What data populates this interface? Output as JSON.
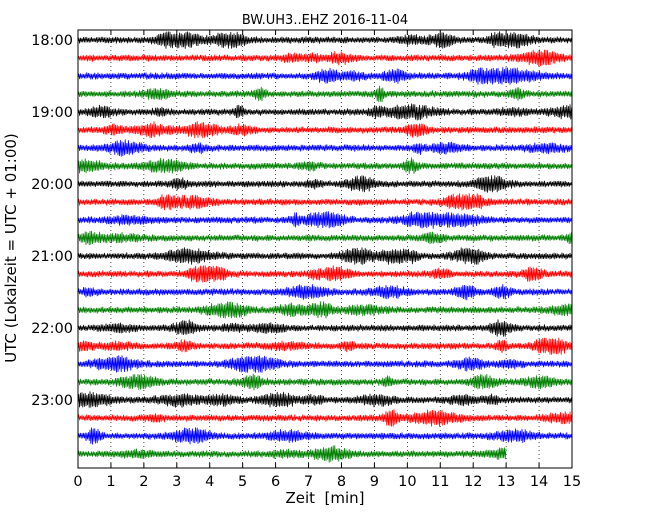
{
  "chart_data": {
    "type": "line",
    "title": "BW.UH3..EHZ 2016-11-04",
    "xlabel": "Zeit  [min]",
    "ylabel": "UTC (Lokalzeit = UTC + 01:00)",
    "xlim": [
      0,
      15
    ],
    "x_ticks": [
      "0",
      "1",
      "2",
      "3",
      "4",
      "5",
      "6",
      "7",
      "8",
      "9",
      "10",
      "11",
      "12",
      "13",
      "14",
      "15"
    ],
    "y_tick_labels": [
      "18:00",
      "19:00",
      "20:00",
      "21:00",
      "22:00",
      "23:00"
    ],
    "grid": "vertical dotted at each minute",
    "colors": [
      "#000000",
      "#ff0000",
      "#0000ff",
      "#008000"
    ],
    "trace_start_times": [
      "18:00",
      "18:15",
      "18:30",
      "18:45",
      "19:00",
      "19:15",
      "19:30",
      "19:45",
      "20:00",
      "20:15",
      "20:30",
      "20:45",
      "21:00",
      "21:15",
      "21:30",
      "21:45",
      "22:00",
      "22:15",
      "22:30",
      "22:45",
      "23:00",
      "23:15",
      "23:30",
      "23:45"
    ],
    "trace_duration_min": 15,
    "last_trace_end_min": 13.0
  }
}
